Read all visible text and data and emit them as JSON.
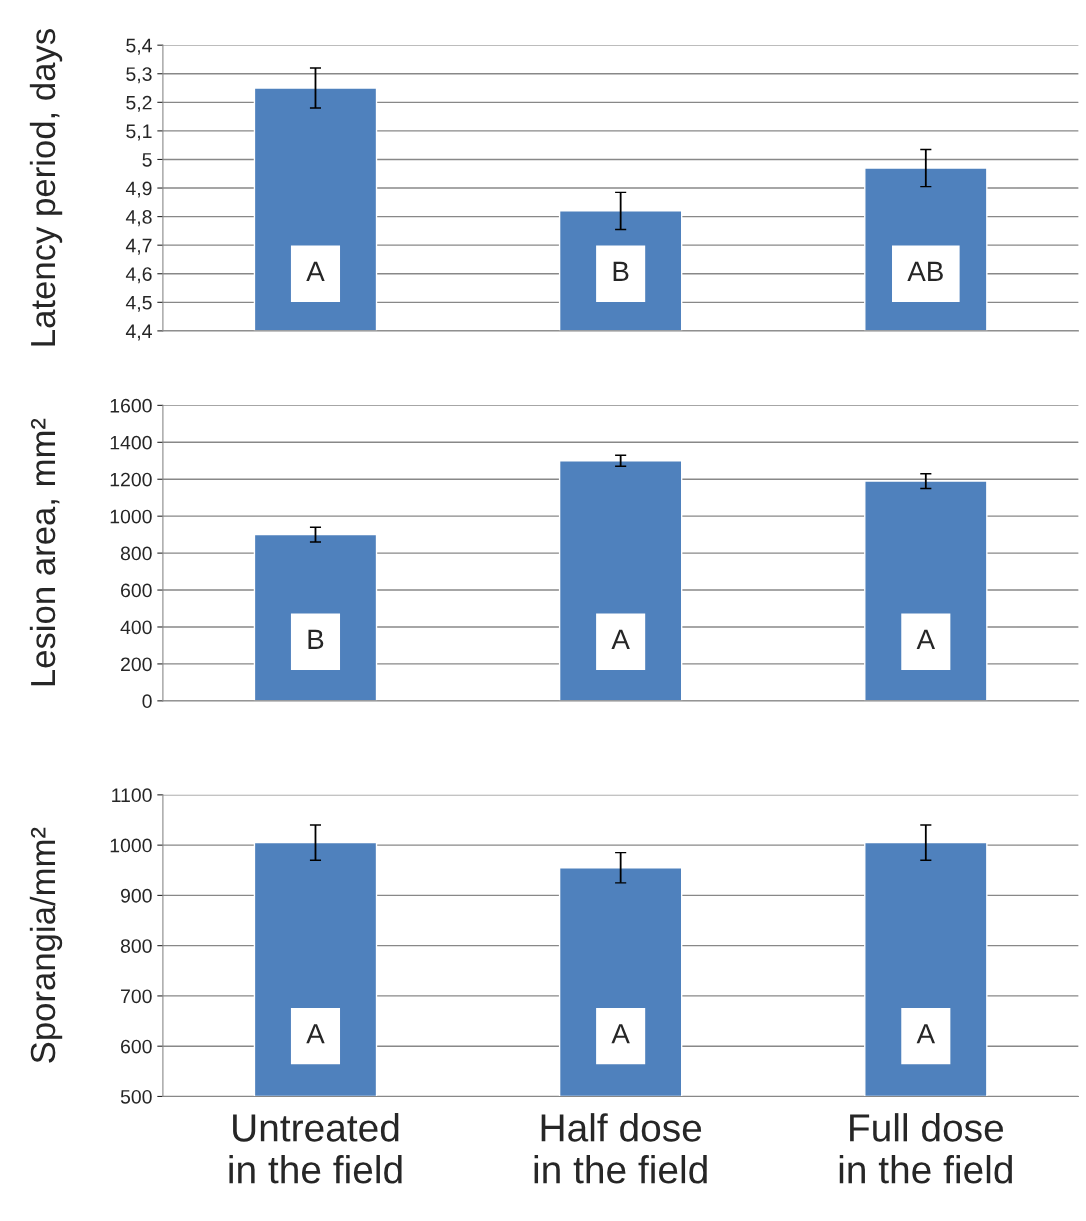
{
  "chart_data": [
    {
      "type": "bar",
      "ylabel": "Latency period, days",
      "categories": [
        null,
        null,
        null
      ],
      "series": [
        {
          "color": "#4f81bd",
          "values": [
            5.25,
            4.82,
            4.97
          ],
          "errors": [
            0.07,
            0.065,
            0.065
          ]
        }
      ],
      "ylim": [
        4.4,
        5.4
      ],
      "yticks": [
        {
          "value": 4.4,
          "label": "4,4"
        },
        {
          "value": 4.5,
          "label": "4,5"
        },
        {
          "value": 4.6,
          "label": "4,6"
        },
        {
          "value": 4.7,
          "label": "4,7"
        },
        {
          "value": 4.8,
          "label": "4,8"
        },
        {
          "value": 4.9,
          "label": "4,9"
        },
        {
          "value": 5,
          "label": "5"
        },
        {
          "value": 5.1,
          "label": "5,1"
        },
        {
          "value": 5.2,
          "label": "5,2"
        },
        {
          "value": 5.3,
          "label": "5,3"
        },
        {
          "value": 5.4,
          "label": "5,4"
        }
      ],
      "grid": "y",
      "legend": false,
      "tick_labels": "y",
      "annotations": [
        "A",
        "B",
        "AB"
      ]
    },
    {
      "type": "bar",
      "ylabel": "Lesion area, mm²",
      "categories": [
        null,
        null,
        null
      ],
      "series": [
        {
          "color": "#4f81bd",
          "values": [
            900,
            1300,
            1190
          ],
          "errors": [
            40,
            30,
            40
          ]
        }
      ],
      "ylim": [
        0,
        1600
      ],
      "yticks": [
        0,
        200,
        400,
        600,
        800,
        1000,
        1200,
        1400,
        1600
      ],
      "grid": "y",
      "legend": false,
      "tick_labels": "y",
      "annotations": [
        "B",
        "A",
        "A"
      ]
    },
    {
      "type": "bar",
      "ylabel": "Sporangia/mm²",
      "categories": [
        "Untreated\nin the field",
        "Half dose\nin the field",
        "Full dose\nin the field"
      ],
      "series": [
        {
          "color": "#4f81bd",
          "values": [
            1005,
            955,
            1005
          ],
          "errors": [
            35,
            30,
            35
          ]
        }
      ],
      "ylim": [
        500,
        1100
      ],
      "yticks": [
        500,
        600,
        700,
        800,
        900,
        1000,
        1100
      ],
      "grid": "y",
      "legend": false,
      "annotations": [
        "A",
        "A",
        "A"
      ]
    }
  ]
}
